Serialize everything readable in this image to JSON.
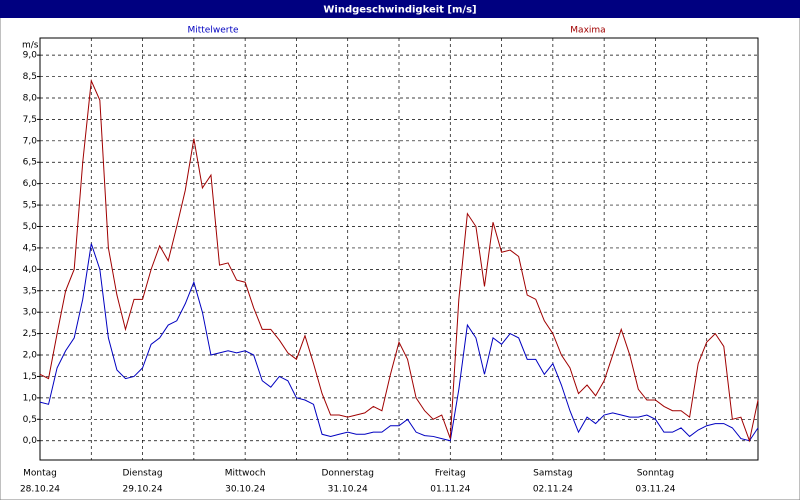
{
  "chart_data": {
    "type": "line",
    "title": "Windgeschwindigkeit [m/s]",
    "ylabel": "m/s",
    "xlim": [
      0,
      168
    ],
    "ylim": [
      -0.45,
      9.4
    ],
    "grid": true,
    "xticks": [
      {
        "value": 0,
        "label": "Montag"
      },
      {
        "value": 24,
        "label": "Dienstag"
      },
      {
        "value": 48,
        "label": "Mittwoch"
      },
      {
        "value": 72,
        "label": "Donnerstag"
      },
      {
        "value": 96,
        "label": "Freitag"
      },
      {
        "value": 120,
        "label": "Samstag"
      },
      {
        "value": 144,
        "label": "Sonntag"
      }
    ],
    "xtick_dates": [
      "28.10.24",
      "29.10.24",
      "30.10.24",
      "31.10.24",
      "01.11.24",
      "02.11.24",
      "03.11.24"
    ],
    "xgrid": [
      12,
      36,
      60,
      84,
      108,
      132,
      156,
      168
    ],
    "yticks": [
      {
        "value": 0,
        "label": "0,0"
      },
      {
        "value": 0.5,
        "label": "0,5"
      },
      {
        "value": 1,
        "label": "1,0"
      },
      {
        "value": 1.5,
        "label": "1,5"
      },
      {
        "value": 2,
        "label": "2,0"
      },
      {
        "value": 2.5,
        "label": "2,5"
      },
      {
        "value": 3,
        "label": "3,0"
      },
      {
        "value": 3.5,
        "label": "3,5"
      },
      {
        "value": 4,
        "label": "4,0"
      },
      {
        "value": 4.5,
        "label": "4,5"
      },
      {
        "value": 5,
        "label": "5,0"
      },
      {
        "value": 5.5,
        "label": "5,5"
      },
      {
        "value": 6,
        "label": "6,0"
      },
      {
        "value": 6.5,
        "label": "6,5"
      },
      {
        "value": 7,
        "label": "7,0"
      },
      {
        "value": 7.5,
        "label": "7,5"
      },
      {
        "value": 8,
        "label": "8,0"
      },
      {
        "value": 8.5,
        "label": "8,5"
      },
      {
        "value": 9,
        "label": "9,0"
      }
    ],
    "x": [
      0,
      2,
      4,
      6,
      8,
      10,
      12,
      14,
      16,
      18,
      20,
      22,
      24,
      26,
      28,
      30,
      32,
      34,
      36,
      38,
      40,
      42,
      44,
      46,
      48,
      50,
      52,
      54,
      56,
      58,
      60,
      62,
      64,
      66,
      68,
      70,
      72,
      74,
      76,
      78,
      80,
      82,
      84,
      86,
      88,
      90,
      92,
      94,
      96,
      98,
      100,
      102,
      104,
      106,
      108,
      110,
      112,
      114,
      116,
      118,
      120,
      122,
      124,
      126,
      128,
      130,
      132,
      134,
      136,
      138,
      140,
      142,
      144,
      146,
      148,
      150,
      152,
      154,
      156,
      158,
      160,
      162,
      164,
      166,
      168
    ],
    "series": [
      {
        "name": "Mittelwerte",
        "color": "#0000c0",
        "values": [
          0.9,
          0.85,
          1.7,
          2.1,
          2.4,
          3.3,
          4.6,
          4.0,
          2.4,
          1.65,
          1.45,
          1.5,
          1.7,
          2.25,
          2.4,
          2.7,
          2.8,
          3.2,
          3.7,
          3.0,
          2.0,
          2.05,
          2.1,
          2.05,
          2.1,
          2.0,
          1.4,
          1.25,
          1.5,
          1.4,
          1.0,
          0.95,
          0.85,
          0.15,
          0.1,
          0.15,
          0.2,
          0.15,
          0.15,
          0.2,
          0.2,
          0.35,
          0.35,
          0.5,
          0.2,
          0.12,
          0.1,
          0.05,
          0.0,
          1.2,
          2.7,
          2.4,
          1.55,
          2.4,
          2.25,
          2.5,
          2.4,
          1.9,
          1.9,
          1.55,
          1.8,
          1.3,
          0.7,
          0.2,
          0.55,
          0.4,
          0.6,
          0.65,
          0.6,
          0.55,
          0.55,
          0.6,
          0.5,
          0.2,
          0.2,
          0.3,
          0.1,
          0.25,
          0.35,
          0.4,
          0.4,
          0.3,
          0.05,
          0.0,
          0.3
        ]
      },
      {
        "name": "Maxima",
        "color": "#a00000",
        "values": [
          1.55,
          1.45,
          2.5,
          3.5,
          4.0,
          6.5,
          8.4,
          7.95,
          4.5,
          3.4,
          2.6,
          3.3,
          3.3,
          4.0,
          4.55,
          4.2,
          5.0,
          5.85,
          7.05,
          5.9,
          6.2,
          4.1,
          4.15,
          3.75,
          3.7,
          3.1,
          2.6,
          2.6,
          2.35,
          2.05,
          1.9,
          2.45,
          1.8,
          1.1,
          0.6,
          0.6,
          0.55,
          0.6,
          0.65,
          0.8,
          0.7,
          1.55,
          2.3,
          1.9,
          1.0,
          0.7,
          0.5,
          0.6,
          0.05,
          3.3,
          5.3,
          5.0,
          3.6,
          5.1,
          4.4,
          4.45,
          4.3,
          3.4,
          3.3,
          2.8,
          2.5,
          2.0,
          1.7,
          1.1,
          1.3,
          1.05,
          1.4,
          2.0,
          2.6,
          2.0,
          1.2,
          0.95,
          0.95,
          0.8,
          0.7,
          0.7,
          0.55,
          1.8,
          2.3,
          2.5,
          2.2,
          0.5,
          0.55,
          0.0,
          0.95
        ]
      }
    ]
  }
}
